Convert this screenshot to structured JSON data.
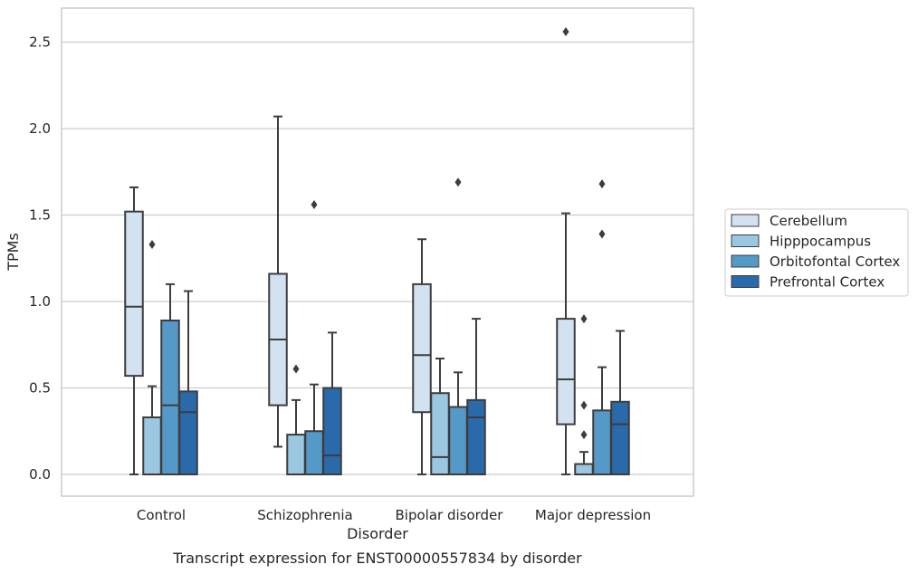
{
  "chart_data": {
    "type": "box",
    "caption": "Transcript expression for ENST00000557834 by disorder",
    "xlabel": "Disorder",
    "ylabel": "TPMs",
    "ylim": [
      -0.12,
      2.68
    ],
    "yticks": [
      "0.0",
      "0.5",
      "1.0",
      "1.5",
      "2.0",
      "2.5"
    ],
    "categories": [
      "Control",
      "Schizophrenia",
      "Bipolar disorder",
      "Major depression"
    ],
    "grid": "horizontal",
    "legend_position": "outside-right",
    "series": [
      {
        "name": "Cerebellum",
        "color": "#d2e2f1",
        "boxes": [
          {
            "whisker_low": 0.0,
            "q1": 0.57,
            "median": 0.97,
            "q3": 1.52,
            "whisker_high": 1.66,
            "outliers": []
          },
          {
            "whisker_low": 0.16,
            "q1": 0.4,
            "median": 0.78,
            "q3": 1.16,
            "whisker_high": 2.07,
            "outliers": []
          },
          {
            "whisker_low": 0.0,
            "q1": 0.36,
            "median": 0.69,
            "q3": 1.1,
            "whisker_high": 1.36,
            "outliers": []
          },
          {
            "whisker_low": 0.0,
            "q1": 0.29,
            "median": 0.55,
            "q3": 0.9,
            "whisker_high": 1.51,
            "outliers": [
              2.56
            ]
          }
        ]
      },
      {
        "name": "Hipppocampus",
        "color": "#9bc7e0",
        "boxes": [
          {
            "whisker_low": 0.0,
            "q1": 0.0,
            "median": 0.0,
            "q3": 0.33,
            "whisker_high": 0.51,
            "outliers": [
              1.33
            ]
          },
          {
            "whisker_low": 0.0,
            "q1": 0.0,
            "median": 0.0,
            "q3": 0.23,
            "whisker_high": 0.43,
            "outliers": [
              0.61
            ]
          },
          {
            "whisker_low": 0.0,
            "q1": 0.0,
            "median": 0.1,
            "q3": 0.47,
            "whisker_high": 0.67,
            "outliers": []
          },
          {
            "whisker_low": 0.0,
            "q1": 0.0,
            "median": 0.0,
            "q3": 0.06,
            "whisker_high": 0.13,
            "outliers": [
              0.23,
              0.4,
              0.9
            ]
          }
        ]
      },
      {
        "name": "Orbitofontal Cortex",
        "color": "#5599c9",
        "boxes": [
          {
            "whisker_low": 0.0,
            "q1": 0.0,
            "median": 0.4,
            "q3": 0.89,
            "whisker_high": 1.1,
            "outliers": []
          },
          {
            "whisker_low": 0.0,
            "q1": 0.0,
            "median": 0.0,
            "q3": 0.25,
            "whisker_high": 0.52,
            "outliers": [
              1.56
            ]
          },
          {
            "whisker_low": 0.0,
            "q1": 0.0,
            "median": 0.0,
            "q3": 0.39,
            "whisker_high": 0.59,
            "outliers": [
              1.69
            ]
          },
          {
            "whisker_low": 0.0,
            "q1": 0.0,
            "median": 0.0,
            "q3": 0.37,
            "whisker_high": 0.62,
            "outliers": [
              1.39,
              1.68
            ]
          }
        ]
      },
      {
        "name": "Prefrontal Cortex",
        "color": "#2a6aab",
        "boxes": [
          {
            "whisker_low": 0.0,
            "q1": 0.0,
            "median": 0.36,
            "q3": 0.48,
            "whisker_high": 1.06,
            "outliers": []
          },
          {
            "whisker_low": 0.0,
            "q1": 0.0,
            "median": 0.11,
            "q3": 0.5,
            "whisker_high": 0.82,
            "outliers": []
          },
          {
            "whisker_low": 0.0,
            "q1": 0.0,
            "median": 0.33,
            "q3": 0.43,
            "whisker_high": 0.9,
            "outliers": []
          },
          {
            "whisker_low": 0.0,
            "q1": 0.0,
            "median": 0.29,
            "q3": 0.42,
            "whisker_high": 0.83,
            "outliers": []
          }
        ]
      }
    ]
  }
}
